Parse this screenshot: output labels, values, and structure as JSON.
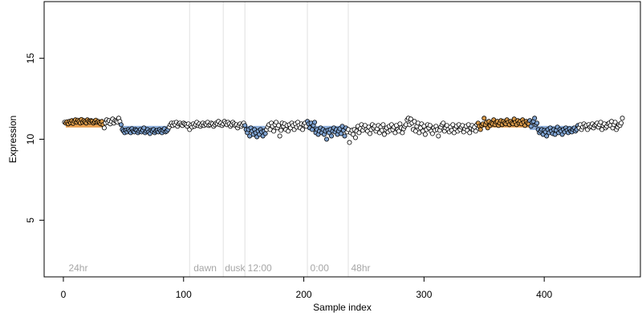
{
  "chart_data": {
    "type": "scatter",
    "title": "",
    "xlabel": "Sample index",
    "ylabel": "Expression",
    "xlim": [
      -16,
      480
    ],
    "ylim": [
      1.5,
      18.5
    ],
    "x_ticks": [
      0,
      100,
      200,
      300,
      400
    ],
    "y_ticks": [
      5,
      10,
      15
    ],
    "grid": false,
    "colors": {
      "points_fill_high": "#d99a4a",
      "points_fill_low": "#7fa3d1",
      "points_fill_mid": "#ffffff",
      "points_stroke": "#000000",
      "segment_high": "#e8a050",
      "segment_low": "#8fb0dc",
      "vertical_lines": "#e0e0e0",
      "annotation_text": "#a6a6a6"
    },
    "vertical_lines": [
      105,
      133,
      151,
      203,
      237
    ],
    "annotations": [
      {
        "x": 3,
        "label": "24hr"
      },
      {
        "x": 107,
        "label": "dawn"
      },
      {
        "x": 133,
        "label": "dusk"
      },
      {
        "x": 152,
        "label": "12:00"
      },
      {
        "x": 204,
        "label": "0:00"
      },
      {
        "x": 238,
        "label": "48hr"
      }
    ],
    "segments": [
      {
        "x0": 2,
        "x1": 33,
        "y": 10.85,
        "level": "high"
      },
      {
        "x0": 48,
        "x1": 87,
        "y": 10.7,
        "level": "low"
      },
      {
        "x0": 151,
        "x1": 168,
        "y": 10.7,
        "level": "low"
      },
      {
        "x0": 203,
        "x1": 235,
        "y": 10.7,
        "level": "low"
      },
      {
        "x0": 345,
        "x1": 388,
        "y": 10.85,
        "level": "high"
      },
      {
        "x0": 388,
        "x1": 428,
        "y": 10.7,
        "level": "low"
      }
    ],
    "series": [
      {
        "description": "samples, one point per index; y values approximate",
        "x_start": 1,
        "x_step": 1,
        "y": [
          11.05,
          11.0,
          11.08,
          10.95,
          11.1,
          11.02,
          11.15,
          10.98,
          11.12,
          11.2,
          11.05,
          11.18,
          11.1,
          11.0,
          11.22,
          11.05,
          11.15,
          11.08,
          11.0,
          11.2,
          11.1,
          11.05,
          11.15,
          11.12,
          11.0,
          11.08,
          11.18,
          11.05,
          11.1,
          11.02,
          10.95,
          11.1,
          10.9,
          10.7,
          11.0,
          11.2,
          11.05,
          11.15,
          10.95,
          11.1,
          11.25,
          11.0,
          11.15,
          11.1,
          11.05,
          11.3,
          11.1,
          10.9,
          10.6,
          10.5,
          10.4,
          10.55,
          10.45,
          10.6,
          10.5,
          10.4,
          10.65,
          10.5,
          10.45,
          10.6,
          10.55,
          10.4,
          10.5,
          10.6,
          10.45,
          10.55,
          10.7,
          10.4,
          10.5,
          10.6,
          10.45,
          10.35,
          10.55,
          10.5,
          10.6,
          10.4,
          10.5,
          10.55,
          10.45,
          10.6,
          10.5,
          10.4,
          10.55,
          10.65,
          10.45,
          10.5,
          10.6,
          10.75,
          10.9,
          11.0,
          10.85,
          11.0,
          10.9,
          11.05,
          10.8,
          10.95,
          11.0,
          10.9,
          10.85,
          11.0,
          10.95,
          10.9,
          10.8,
          10.95,
          10.6,
          10.85,
          10.75,
          10.95,
          10.8,
          10.9,
          11.05,
          10.85,
          10.95,
          10.8,
          10.9,
          11.0,
          10.85,
          10.95,
          10.9,
          11.05,
          10.85,
          10.9,
          11.0,
          10.95,
          10.8,
          10.9,
          11.0,
          10.95,
          11.1,
          10.9,
          11.0,
          10.85,
          10.95,
          11.1,
          11.0,
          10.9,
          11.05,
          10.95,
          10.8,
          10.9,
          11.05,
          10.95,
          10.85,
          10.9,
          10.7,
          10.85,
          10.95,
          10.8,
          10.9,
          11.0,
          10.85,
          10.6,
          10.4,
          10.6,
          10.2,
          10.7,
          10.5,
          10.3,
          10.6,
          10.4,
          10.15,
          10.5,
          10.3,
          10.6,
          10.45,
          10.2,
          10.5,
          10.35,
          10.6,
          10.75,
          10.9,
          10.6,
          11.0,
          10.8,
          10.5,
          10.9,
          11.05,
          10.7,
          10.85,
          10.2,
          10.55,
          11.0,
          10.8,
          10.95,
          10.6,
          10.85,
          10.5,
          10.9,
          10.7,
          11.0,
          10.85,
          10.6,
          10.95,
          10.75,
          11.05,
          10.85,
          10.7,
          10.95,
          10.6,
          10.9,
          11.0,
          10.8,
          11.1,
          10.95,
          10.7,
          11.0,
          10.6,
          10.85,
          11.05,
          10.4,
          10.6,
          10.3,
          10.5,
          10.7,
          10.4,
          10.6,
          10.3,
          10.5,
          10.0,
          10.55,
          10.4,
          10.6,
          10.2,
          10.5,
          10.7,
          10.45,
          10.6,
          10.3,
          10.5,
          10.65,
          10.35,
          10.8,
          10.55,
          10.2,
          10.7,
          10.45,
          10.6,
          9.8,
          10.4,
          10.55,
          10.3,
          10.6,
          10.1,
          10.5,
          10.8,
          10.4,
          10.65,
          10.9,
          10.55,
          10.75,
          10.85,
          10.6,
          10.5,
          10.75,
          10.35,
          10.6,
          10.9,
          10.7,
          10.8,
          10.5,
          10.65,
          10.85,
          10.4,
          10.75,
          10.55,
          10.9,
          10.3,
          10.6,
          10.7,
          10.45,
          10.8,
          10.55,
          10.9,
          10.6,
          10.75,
          10.4,
          10.85,
          10.6,
          10.5,
          10.95,
          10.7,
          10.4,
          10.65,
          10.8,
          10.9,
          11.2,
          11.3,
          10.9,
          11.25,
          11.0,
          10.6,
          11.1,
          10.5,
          10.8,
          11.0,
          10.4,
          10.7,
          10.95,
          10.5,
          10.8,
          10.3,
          10.6,
          10.9,
          10.7,
          10.85,
          10.5,
          10.35,
          10.7,
          10.55,
          10.8,
          10.6,
          10.2,
          10.55,
          10.75,
          10.9,
          11.0,
          10.5,
          10.7,
          10.85,
          10.6,
          10.45,
          10.75,
          10.55,
          10.9,
          10.4,
          10.65,
          10.8,
          10.5,
          10.9,
          10.6,
          10.75,
          10.85,
          10.45,
          10.65,
          10.8,
          10.55,
          10.9,
          10.4,
          10.7,
          10.85,
          10.6,
          10.75,
          10.5,
          10.9,
          11.0,
          10.8,
          10.6,
          10.85,
          10.95,
          11.3,
          10.9,
          11.05,
          10.7,
          11.1,
          10.85,
          11.0,
          10.95,
          11.2,
          10.9,
          11.05,
          11.1,
          10.85,
          11.0,
          11.15,
          10.9,
          11.1,
          11.0,
          10.95,
          11.2,
          11.05,
          10.9,
          11.1,
          11.0,
          10.95,
          11.25,
          11.05,
          10.9,
          11.15,
          11.0,
          11.1,
          10.95,
          11.2,
          11.05,
          10.85,
          11.1,
          11.0,
          10.95,
          11.15,
          10.8,
          11.05,
          11.1,
          11.3,
          10.9,
          11.0,
          10.6,
          10.4,
          10.5,
          10.6,
          10.3,
          10.55,
          10.45,
          10.2,
          10.6,
          10.4,
          10.7,
          10.5,
          10.35,
          10.6,
          10.3,
          10.55,
          10.75,
          10.4,
          10.6,
          10.5,
          10.3,
          10.6,
          10.45,
          10.7,
          10.55,
          10.4,
          10.65,
          10.5,
          10.45,
          10.6,
          10.7,
          10.5,
          10.6,
          10.85,
          10.7,
          10.9,
          10.6,
          10.75,
          10.95,
          10.8,
          10.85,
          10.6,
          10.9,
          10.75,
          10.8,
          10.95,
          10.7,
          10.85,
          10.9,
          11.0,
          10.75,
          10.9,
          11.05,
          10.6,
          10.85,
          10.95,
          10.7,
          10.8,
          10.95,
          11.0,
          10.85,
          11.1,
          10.7,
          10.9,
          11.05,
          10.6,
          10.75,
          10.9,
          10.85,
          11.0,
          11.3
        ]
      }
    ]
  }
}
